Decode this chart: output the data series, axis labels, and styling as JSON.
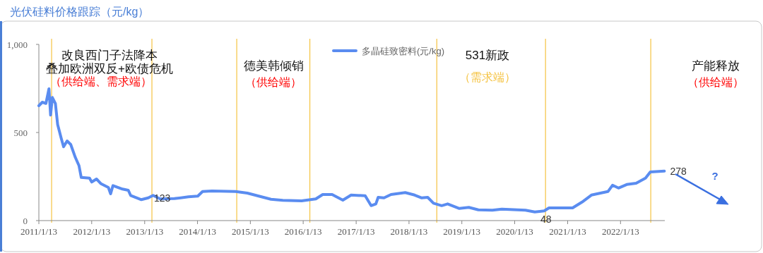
{
  "chart_data": {
    "type": "line",
    "title": "光伏硅料价格跟踪（元/kg）",
    "x": [
      "2011-01-13",
      "2011-02-06",
      "2011-03-03",
      "2011-03-24",
      "2011-04-04",
      "2011-04-16",
      "2011-05-07",
      "2011-05-23",
      "2011-06-17",
      "2011-07-03",
      "2011-07-27",
      "2011-08-21",
      "2011-09-22",
      "2011-10-17",
      "2011-11-02",
      "2011-12-29",
      "2012-01-13",
      "2012-02-15",
      "2012-03-18",
      "2012-05-07",
      "2012-05-23",
      "2012-06-08",
      "2012-08-13",
      "2012-09-22",
      "2012-10-08",
      "2012-12-21",
      "2013-02-07",
      "2013-03-12",
      "2013-04-30",
      "2013-08-06",
      "2013-11-11",
      "2014-01-15",
      "2014-02-17",
      "2014-04-23",
      "2014-10-03",
      "2014-12-23",
      "2015-03-31",
      "2015-06-04",
      "2015-08-25",
      "2016-01-02",
      "2016-04-09",
      "2016-05-27",
      "2016-07-31",
      "2016-10-13",
      "2016-12-09",
      "2017-03-16",
      "2017-04-26",
      "2017-05-29",
      "2017-06-14",
      "2017-07-24",
      "2017-09-11",
      "2017-12-18",
      "2018-02-21",
      "2018-04-11",
      "2018-05-22",
      "2018-07-01",
      "2018-08-27",
      "2018-10-07",
      "2018-12-27",
      "2019-03-02",
      "2019-05-07",
      "2019-08-12",
      "2019-10-16",
      "2020-03-27",
      "2020-05-31",
      "2020-08-04",
      "2020-09-06",
      "2021-02-16",
      "2021-04-22",
      "2021-06-26",
      "2021-10-18",
      "2021-11-19",
      "2021-12-30",
      "2022-02-25",
      "2022-05-01",
      "2022-07-05",
      "2022-08-07",
      "2022-11-12"
    ],
    "series": [
      {
        "name": "多晶硅致密料(元/kg)",
        "color": "#5a8cf0",
        "values": [
          652,
          672,
          665,
          748,
          599,
          699,
          665,
          545,
          465,
          419,
          452,
          432,
          359,
          312,
          245,
          241,
          219,
          236,
          209,
          188,
          152,
          199,
          179,
          172,
          143,
          119,
          129,
          143,
          123,
          125,
          135,
          139,
          165,
          168,
          165,
          156,
          135,
          121,
          115,
          112,
          123,
          148,
          148,
          116,
          145,
          141,
          85,
          95,
          132,
          129,
          148,
          159,
          145,
          129,
          132,
          99,
          85,
          95,
          69,
          75,
          61,
          59,
          65,
          59,
          49,
          55,
          72,
          72,
          105,
          145,
          165,
          201,
          185,
          205,
          212,
          241,
          276,
          281
        ]
      }
    ],
    "xlim": [
      "2011-01-13",
      "2022-11-15"
    ],
    "xticks": [
      {
        "value": "2011-01-13",
        "label": "2011/1/13"
      },
      {
        "value": "2012-01-13",
        "label": "2012/1/13"
      },
      {
        "value": "2013-01-13",
        "label": "2013/1/13"
      },
      {
        "value": "2014-01-13",
        "label": "2014/1/13"
      },
      {
        "value": "2015-01-13",
        "label": "2015/1/13"
      },
      {
        "value": "2016-01-13",
        "label": "2016/1/13"
      },
      {
        "value": "2017-01-13",
        "label": "2017/1/13"
      },
      {
        "value": "2018-01-13",
        "label": "2018/1/13"
      },
      {
        "value": "2019-01-13",
        "label": "2019/1/13"
      },
      {
        "value": "2020-01-13",
        "label": "2020/1/13"
      },
      {
        "value": "2021-01-13",
        "label": "2021/1/13"
      },
      {
        "value": "2022-01-13",
        "label": "2022/1/13"
      }
    ],
    "ylim": [
      0,
      1000
    ],
    "yticks": [
      0,
      500,
      {
        "value": 1000,
        "label": "1,000"
      }
    ],
    "ref_lines": [
      {
        "axis": "x",
        "value": "2011-04-11",
        "color": "#f5c342"
      },
      {
        "axis": "x",
        "value": "2013-03-04",
        "color": "#f5c342"
      },
      {
        "axis": "x",
        "value": "2014-10-11",
        "color": "#f5c342"
      },
      {
        "axis": "x",
        "value": "2016-02-28",
        "color": "#f5c342"
      },
      {
        "axis": "x",
        "value": "2018-07-24",
        "color": "#f5c342"
      },
      {
        "axis": "x",
        "value": "2020-08-13",
        "color": "#f5c342"
      },
      {
        "axis": "x",
        "value": "2022-08-10",
        "color": "#f5c342"
      }
    ],
    "legend": "top",
    "annotations": [
      "改良西门子法降本",
      "叠加欧洲双反+欧债危机",
      "（供给端、需求端）",
      "德美韩倾销",
      "（供给端）",
      "531新政",
      "（需求端）",
      "产能释放",
      "（供给端）",
      "?",
      {
        "text": "123",
        "x": "2013-02-07",
        "y": 123
      },
      {
        "text": "48",
        "x": "2020-05-31",
        "y": 48
      },
      {
        "text": "278",
        "x": "2022-11-12",
        "y": 278
      }
    ]
  }
}
